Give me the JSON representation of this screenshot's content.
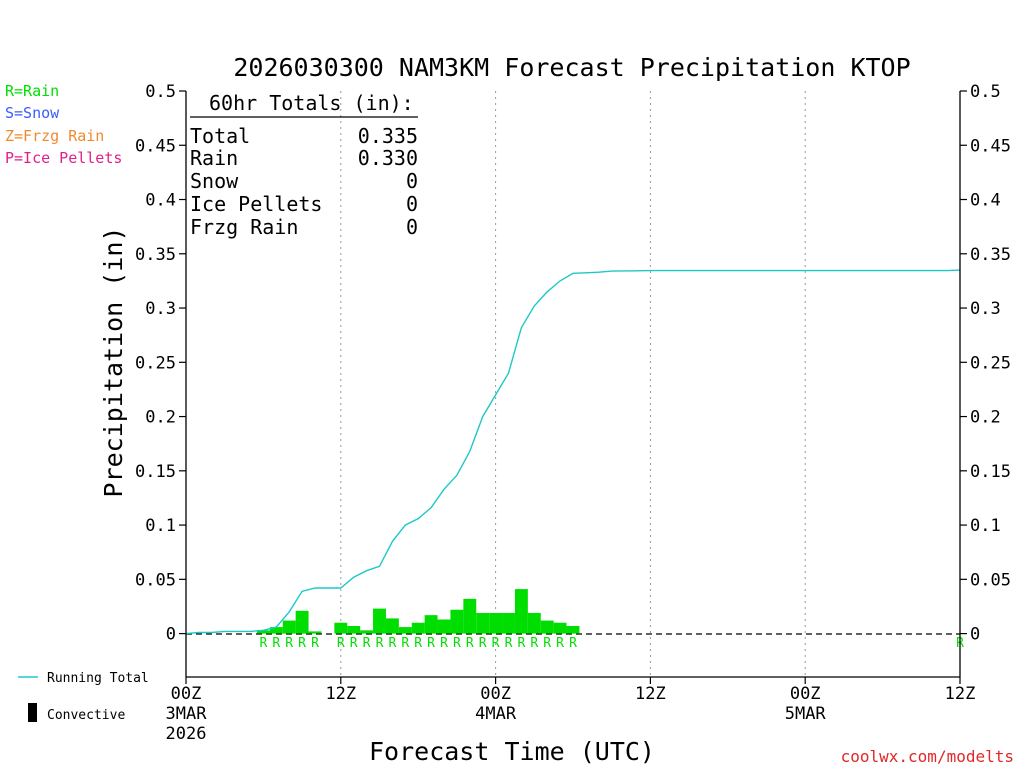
{
  "colors": {
    "rain": "#00e000",
    "snow": "#3b5bff",
    "frzg_rain": "#f08a30",
    "ice_pellets": "#e0208a",
    "running_total": "#1ec8c8",
    "bars": "#00dd00",
    "axis": "#000000",
    "watermark": "#e02828"
  },
  "legend": {
    "rain": "R=Rain",
    "snow": "S=Snow",
    "frzg_rain": "Z=Frzg Rain",
    "ice_pellets": "P=Ice Pellets",
    "running_total": "Running Total",
    "convective": "Convective"
  },
  "totals_box": {
    "header": "60hr Totals (in):",
    "rows": [
      {
        "label": "Total",
        "value": "0.335"
      },
      {
        "label": "Rain",
        "value": "0.330"
      },
      {
        "label": "Snow",
        "value": "0"
      },
      {
        "label": "Ice Pellets",
        "value": "0"
      },
      {
        "label": "Frzg Rain",
        "value": "0"
      }
    ]
  },
  "watermark": "coolwx.com/modelts",
  "chart_data": {
    "type": "bar",
    "title": "2026030300 NAM3KM Forecast Precipitation KTOP",
    "xlabel": "Forecast Time (UTC)",
    "ylabel": "Precipitation (in)",
    "ylim": [
      -0.04,
      0.5
    ],
    "xlim_hours": [
      0,
      60
    ],
    "yticks": [
      0,
      0.05,
      0.1,
      0.15,
      0.2,
      0.25,
      0.3,
      0.35,
      0.4,
      0.45,
      0.5
    ],
    "ytick_labels": [
      "0",
      "0.05",
      "0.1",
      "0.15",
      "0.2",
      "0.25",
      "0.3",
      "0.35",
      "0.4",
      "0.45",
      "0.5"
    ],
    "xticks": [
      {
        "hour": 0,
        "lines": [
          "00Z",
          "3MAR",
          "2026"
        ]
      },
      {
        "hour": 12,
        "lines": [
          "12Z"
        ]
      },
      {
        "hour": 24,
        "lines": [
          "00Z",
          "4MAR"
        ]
      },
      {
        "hour": 36,
        "lines": [
          "12Z"
        ]
      },
      {
        "hour": 48,
        "lines": [
          "00Z",
          "5MAR"
        ]
      },
      {
        "hour": 60,
        "lines": [
          "12Z"
        ]
      }
    ],
    "hourly_precip": {
      "hours": [
        6,
        7,
        8,
        9,
        10,
        12,
        13,
        14,
        15,
        16,
        17,
        18,
        19,
        20,
        21,
        22,
        23,
        24,
        25,
        26,
        27,
        28,
        29,
        30
      ],
      "values": [
        0.003,
        0.006,
        0.012,
        0.021,
        0.002,
        0.01,
        0.007,
        0.003,
        0.023,
        0.014,
        0.006,
        0.01,
        0.017,
        0.013,
        0.022,
        0.032,
        0.019,
        0.019,
        0.019,
        0.041,
        0.019,
        0.012,
        0.01,
        0.007
      ]
    },
    "running_total": {
      "hours": [
        0,
        1,
        2,
        3,
        4,
        5,
        6,
        7,
        8,
        9,
        10,
        11,
        12,
        13,
        14,
        15,
        16,
        17,
        18,
        19,
        20,
        21,
        22,
        23,
        24,
        25,
        26,
        27,
        28,
        29,
        30,
        31,
        32,
        33,
        36,
        42,
        48,
        54,
        59,
        60
      ],
      "values": [
        0,
        0.001,
        0.001,
        0.002,
        0.002,
        0.002,
        0.003,
        0.006,
        0.02,
        0.039,
        0.042,
        0.042,
        0.042,
        0.052,
        0.058,
        0.062,
        0.085,
        0.1,
        0.106,
        0.116,
        0.133,
        0.146,
        0.168,
        0.2,
        0.22,
        0.24,
        0.282,
        0.302,
        0.315,
        0.325,
        0.332,
        0.3325,
        0.333,
        0.334,
        0.3345,
        0.3345,
        0.3345,
        0.3345,
        0.3345,
        0.335
      ]
    },
    "ptype_markers": {
      "hours": [
        6,
        7,
        8,
        9,
        10,
        12,
        13,
        14,
        15,
        16,
        17,
        18,
        19,
        20,
        21,
        22,
        23,
        24,
        25,
        26,
        27,
        28,
        29,
        30,
        60
      ],
      "labels": [
        "R",
        "R",
        "R",
        "R",
        "R",
        "R",
        "R",
        "R",
        "R",
        "R",
        "R",
        "R",
        "R",
        "R",
        "R",
        "R",
        "R",
        "R",
        "R",
        "R",
        "R",
        "R",
        "R",
        "R",
        "R"
      ]
    }
  }
}
